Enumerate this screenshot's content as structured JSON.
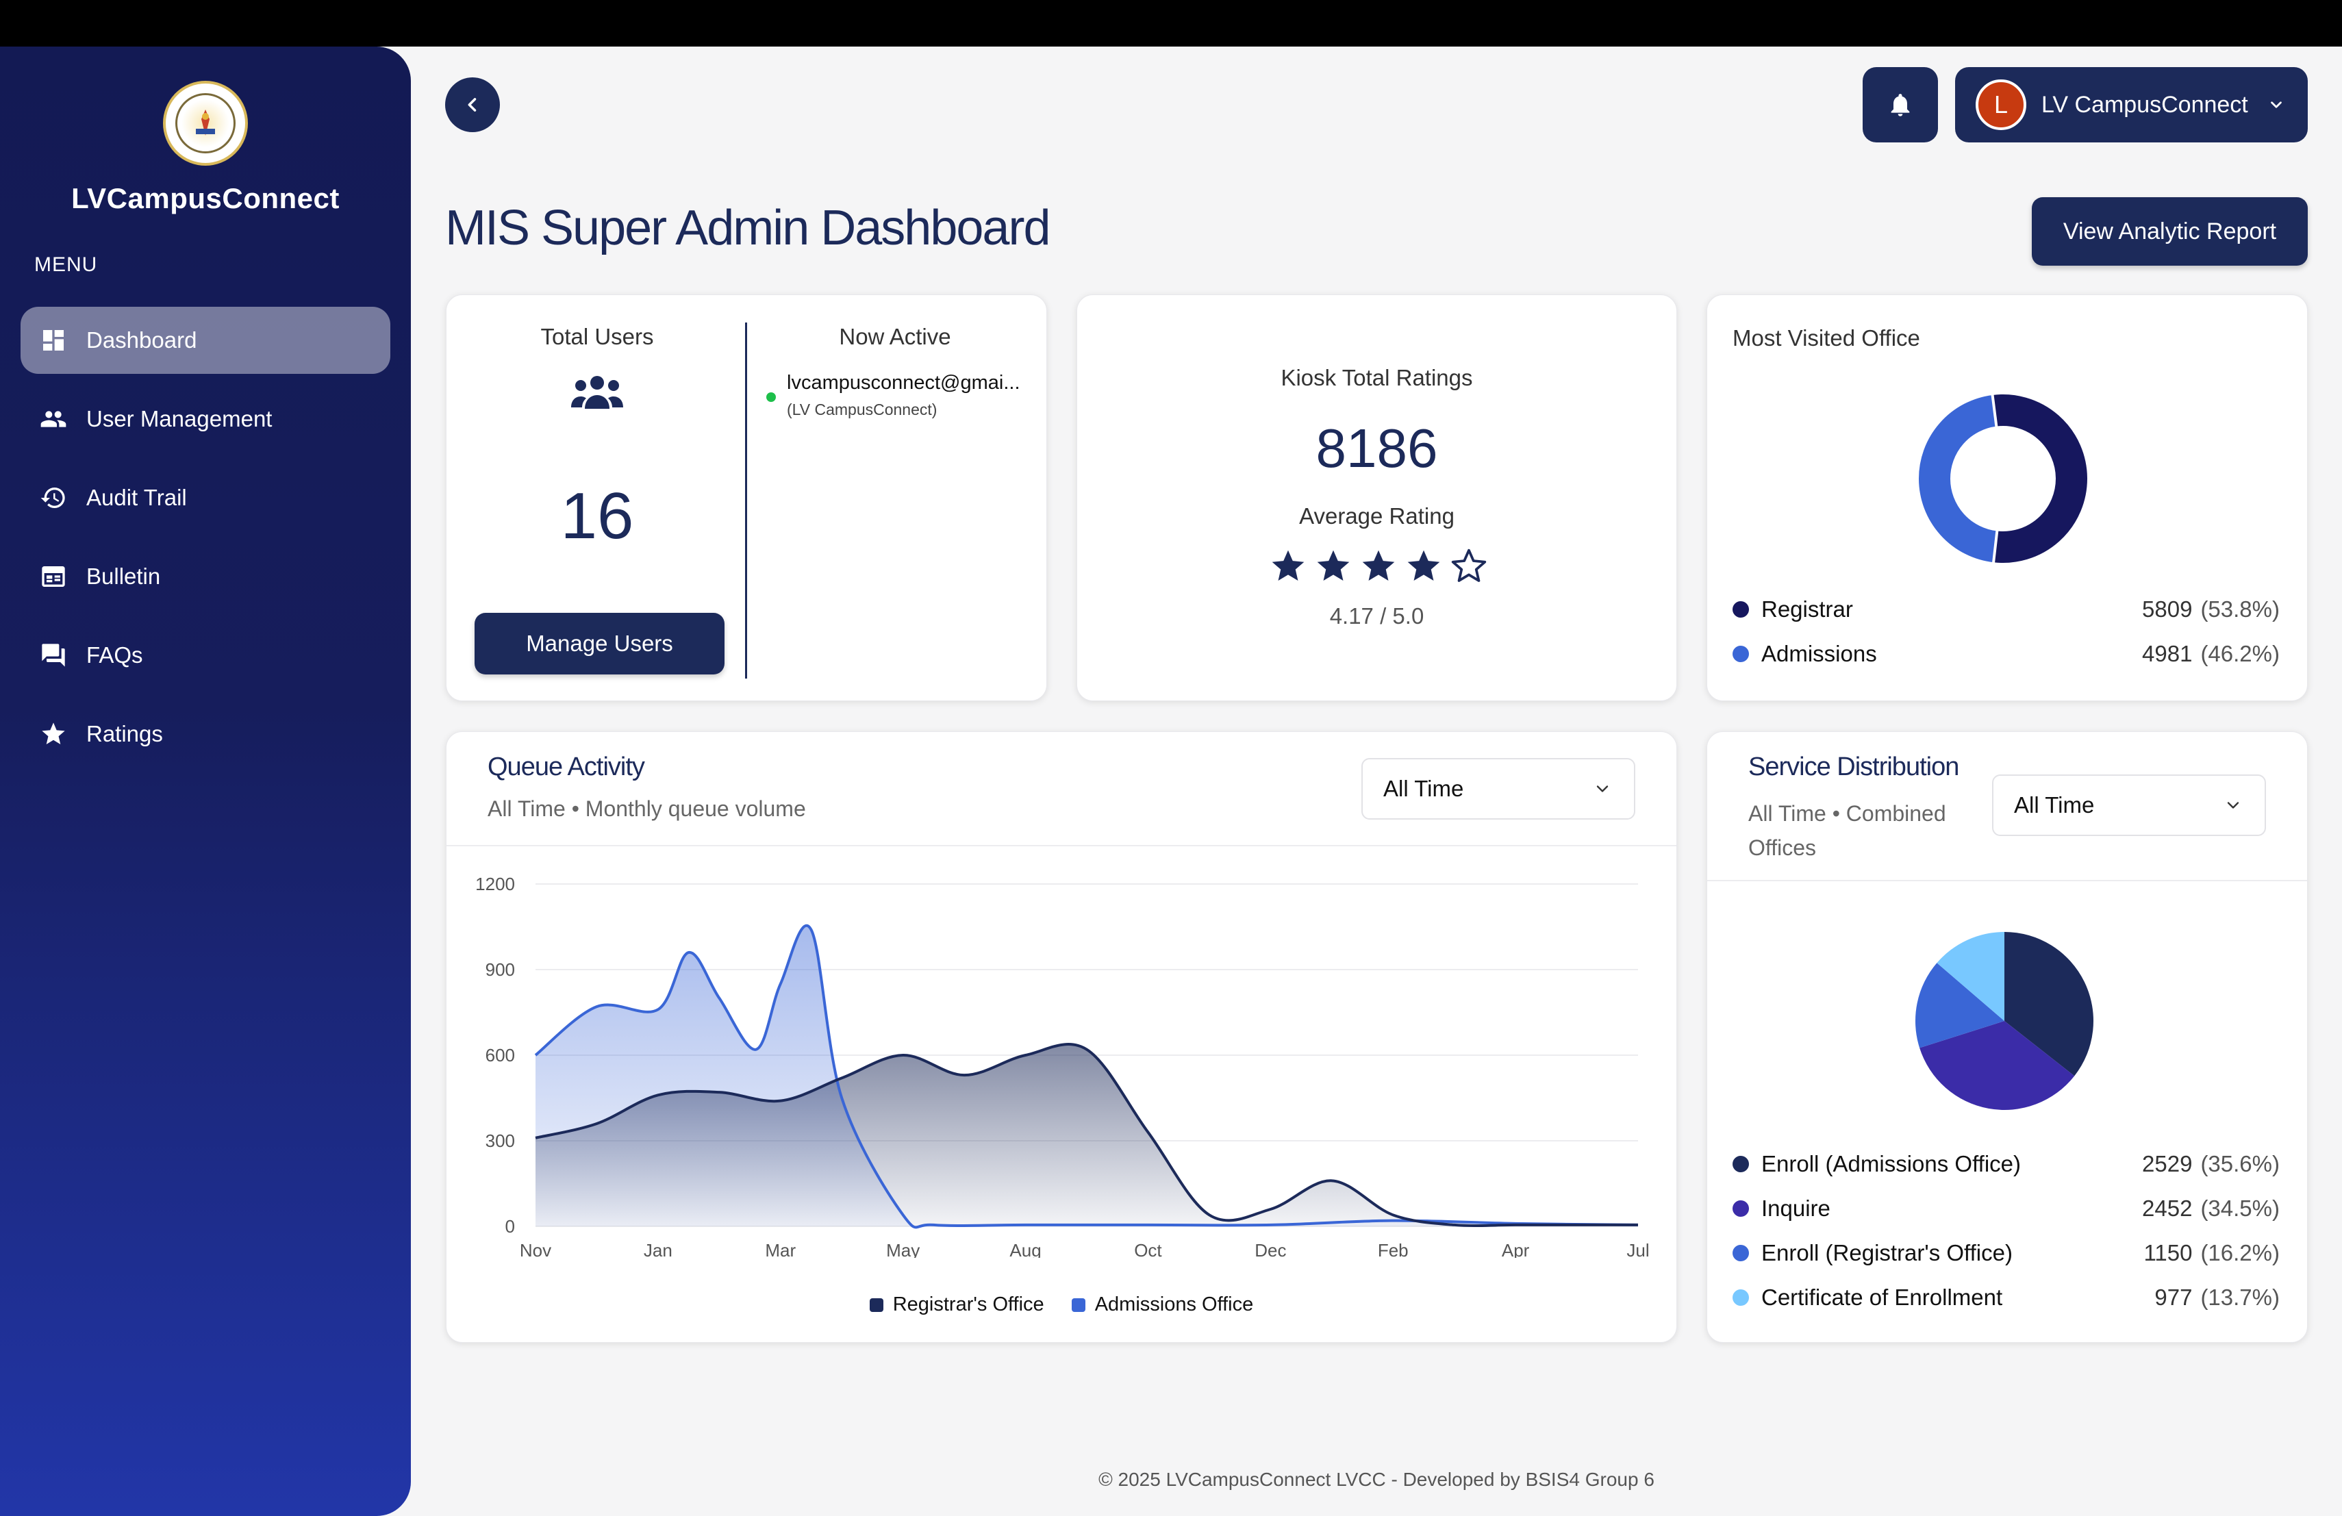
{
  "sidebar": {
    "brand": "LVCampusConnect",
    "menu_label": "MENU",
    "items": [
      {
        "label": "Dashboard",
        "icon": "dashboard-icon",
        "active": true
      },
      {
        "label": "User Management",
        "icon": "users-icon"
      },
      {
        "label": "Audit Trail",
        "icon": "history-icon"
      },
      {
        "label": "Bulletin",
        "icon": "calendar-icon"
      },
      {
        "label": "FAQs",
        "icon": "chat-icon"
      },
      {
        "label": "Ratings",
        "icon": "star-icon"
      }
    ]
  },
  "header": {
    "user_initial": "L",
    "user_name": "LV CampusConnect",
    "page_title": "MIS Super Admin Dashboard",
    "report_button": "View Analytic Report"
  },
  "users_card": {
    "total_label": "Total Users",
    "total_value": "16",
    "manage_button": "Manage Users",
    "now_active_label": "Now Active",
    "active_email": "lvcampusconnect@gmai...",
    "active_name": "(LV CampusConnect)"
  },
  "kiosk_card": {
    "total_label": "Kiosk Total Ratings",
    "total_value": "8186",
    "avg_label": "Average Rating",
    "stars": 4,
    "score": "4.17 / 5.0"
  },
  "office_card": {
    "title": "Most Visited Office",
    "items": [
      {
        "label": "Registrar",
        "value": "5809",
        "pct": "(53.8%)",
        "color": "#16175e",
        "frac": 0.538
      },
      {
        "label": "Admissions",
        "value": "4981",
        "pct": "(46.2%)",
        "color": "#3a66d6",
        "frac": 0.462
      }
    ]
  },
  "queue_card": {
    "title": "Queue Activity",
    "subtitle": "All Time • Monthly queue volume",
    "filter": "All Time"
  },
  "service_card": {
    "title": "Service Distribution",
    "subtitle": "All Time • Combined Offices",
    "filter": "All Time",
    "items": [
      {
        "label": "Enroll (Admissions Office)",
        "value": "2529",
        "pct": "(35.6%)",
        "color": "#1c2a5a",
        "frac": 0.356
      },
      {
        "label": "Inquire",
        "value": "2452",
        "pct": "(34.5%)",
        "color": "#3b2ca8",
        "frac": 0.345
      },
      {
        "label": "Enroll (Registrar's Office)",
        "value": "1150",
        "pct": "(16.2%)",
        "color": "#3a66d6",
        "frac": 0.162
      },
      {
        "label": "Certificate of Enrollment",
        "value": "977",
        "pct": "(13.7%)",
        "color": "#78c8ff",
        "frac": 0.137
      }
    ]
  },
  "chart_data": {
    "type": "area",
    "x_ticks": [
      "Nov",
      "Jan",
      "Mar",
      "May",
      "Aug",
      "Oct",
      "Dec",
      "Feb",
      "Apr",
      "Jul"
    ],
    "y_ticks": [
      "1200",
      "900",
      "600",
      "300",
      "0"
    ],
    "ylim": [
      0,
      1200
    ],
    "grid": true,
    "legend_position": "bottom",
    "series": [
      {
        "name": "Registrar's Office",
        "color": "#1c2a5a",
        "x": [
          0,
          0.5,
          1,
          1.5,
          2,
          2.5,
          3,
          3.5,
          4,
          4.5,
          5,
          5.5,
          6,
          6.5,
          7,
          7.5,
          8,
          8.5,
          9
        ],
        "values": [
          310,
          360,
          460,
          470,
          440,
          520,
          600,
          530,
          600,
          620,
          330,
          40,
          60,
          160,
          40,
          5,
          5,
          5,
          5
        ]
      },
      {
        "name": "Admissions Office",
        "color": "#3a66d6",
        "x": [
          0,
          0.5,
          1,
          1.25,
          1.5,
          1.8,
          2,
          2.25,
          2.5,
          3,
          3.25,
          4,
          5,
          6,
          7,
          8,
          9
        ],
        "values": [
          600,
          770,
          760,
          960,
          800,
          620,
          850,
          1040,
          450,
          40,
          5,
          5,
          5,
          5,
          20,
          10,
          5
        ]
      }
    ]
  },
  "footer": "© 2025 LVCampusConnect LVCC - Developed by BSIS4 Group 6"
}
